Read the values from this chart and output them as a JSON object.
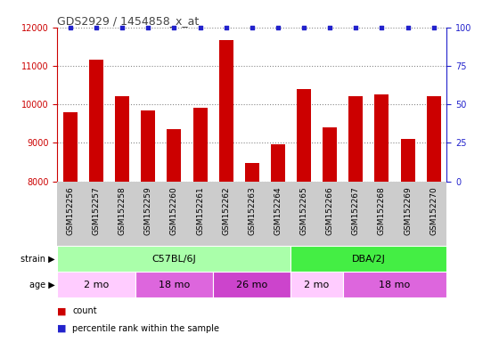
{
  "title": "GDS2929 / 1454858_x_at",
  "samples": [
    "GSM152256",
    "GSM152257",
    "GSM152258",
    "GSM152259",
    "GSM152260",
    "GSM152261",
    "GSM152262",
    "GSM152263",
    "GSM152264",
    "GSM152265",
    "GSM152266",
    "GSM152267",
    "GSM152268",
    "GSM152269",
    "GSM152270"
  ],
  "counts": [
    9800,
    11150,
    10200,
    9850,
    9350,
    9900,
    11680,
    8480,
    8950,
    10400,
    9400,
    10200,
    10250,
    9100,
    10200
  ],
  "ylim_left": [
    8000,
    12000
  ],
  "ylim_right": [
    0,
    100
  ],
  "yticks_left": [
    8000,
    9000,
    10000,
    11000,
    12000
  ],
  "yticks_right": [
    0,
    25,
    50,
    75,
    100
  ],
  "bar_color": "#cc0000",
  "dot_color": "#2222cc",
  "grid_color": "#888888",
  "title_color": "#444444",
  "axis_color_left": "#cc0000",
  "axis_color_right": "#2222cc",
  "strain_groups": [
    {
      "label": "C57BL/6J",
      "start": 0,
      "end": 9,
      "color": "#aaffaa"
    },
    {
      "label": "DBA/2J",
      "start": 9,
      "end": 15,
      "color": "#44ee44"
    }
  ],
  "age_groups": [
    {
      "label": "2 mo",
      "start": 0,
      "end": 3,
      "color": "#ffccff"
    },
    {
      "label": "18 mo",
      "start": 3,
      "end": 6,
      "color": "#dd66dd"
    },
    {
      "label": "26 mo",
      "start": 6,
      "end": 9,
      "color": "#cc44cc"
    },
    {
      "label": "2 mo",
      "start": 9,
      "end": 11,
      "color": "#ffccff"
    },
    {
      "label": "18 mo",
      "start": 11,
      "end": 15,
      "color": "#dd66dd"
    }
  ],
  "sample_bg": "#cccccc",
  "legend_bar_label": "count",
  "legend_dot_label": "percentile rank within the sample"
}
